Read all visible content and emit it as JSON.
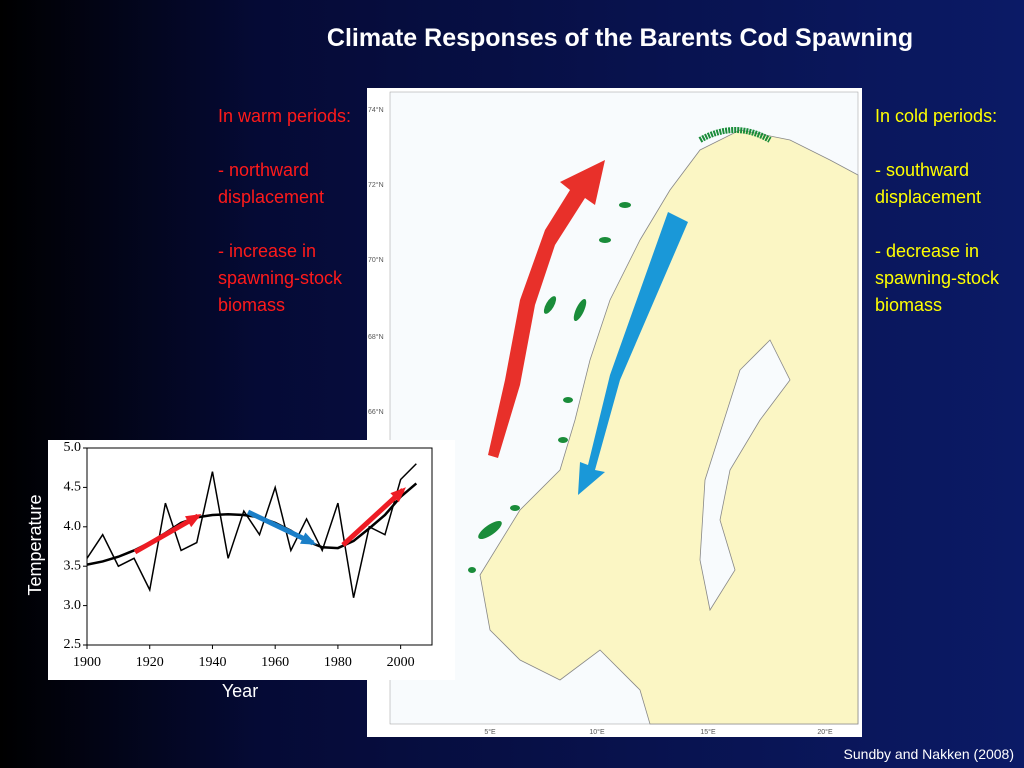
{
  "title": "Climate Responses of the Barents Cod Spawning",
  "warm": {
    "paragraphs": [
      "In warm periods:",
      "- northward displacement",
      "- increase in spawning-stock biomass"
    ]
  },
  "cold": {
    "paragraphs": [
      "In cold periods:",
      "- southward displacement",
      "- decrease in spawning-stock biomass"
    ]
  },
  "map": {
    "lat_labels": [
      "74°N",
      "72°N",
      "70°N",
      "68°N",
      "66°N"
    ],
    "lon_labels": [
      "5°E",
      "10°E",
      "15°E",
      "20°E"
    ]
  },
  "credit": "Sundby and Nakken (2008)",
  "chart_data": {
    "type": "line",
    "x_label": "Year",
    "y_label": "Temperature",
    "x": [
      1900,
      1905,
      1910,
      1915,
      1920,
      1925,
      1930,
      1935,
      1940,
      1945,
      1950,
      1955,
      1960,
      1965,
      1970,
      1975,
      1980,
      1985,
      1990,
      1995,
      2000,
      2005
    ],
    "series": [
      {
        "color": "#000000",
        "values": [
          3.6,
          3.9,
          3.5,
          3.6,
          3.2,
          4.3,
          3.7,
          3.8,
          4.7,
          3.6,
          4.2,
          3.9,
          4.5,
          3.7,
          4.1,
          3.7,
          4.3,
          3.1,
          4.0,
          3.9,
          4.6,
          4.8
        ]
      },
      {
        "color": "#000000",
        "values": [
          3.52,
          3.56,
          3.62,
          3.7,
          3.8,
          3.92,
          4.05,
          4.12,
          4.15,
          4.16,
          4.15,
          4.12,
          4.05,
          3.95,
          3.82,
          3.74,
          3.73,
          3.82,
          3.98,
          4.15,
          4.38,
          4.55
        ]
      }
    ],
    "xlim": [
      1900,
      2010
    ],
    "ylim": [
      2.5,
      5.0
    ],
    "xticks": [
      1900,
      1920,
      1940,
      1960,
      1980,
      2000
    ],
    "yticks": [
      2.5,
      {
        "value": 3.0,
        "label": "3.0"
      },
      3.5,
      {
        "value": 4.0,
        "label": "4.0"
      },
      4.5,
      {
        "value": 5.0,
        "label": "5.0"
      }
    ]
  }
}
